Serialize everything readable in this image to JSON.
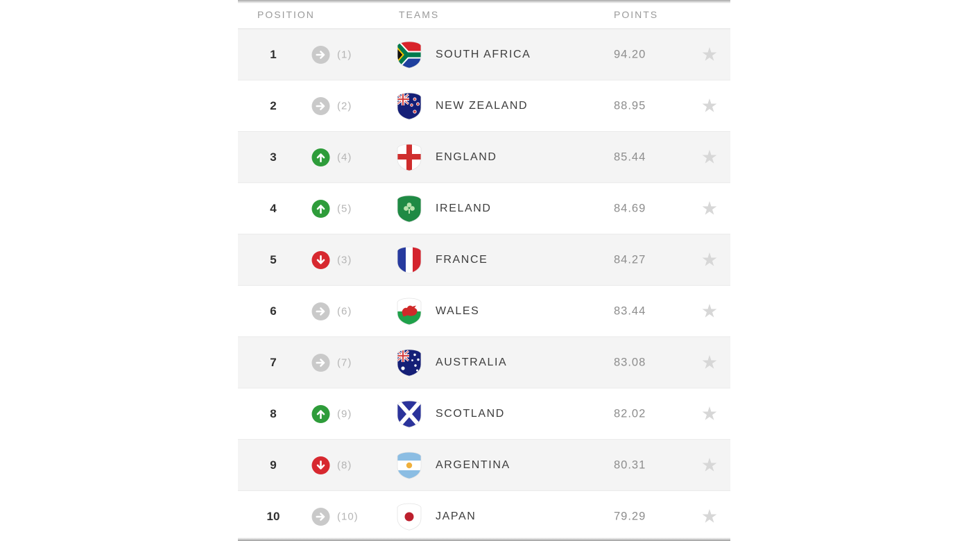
{
  "page": {
    "background": "#ffffff"
  },
  "table": {
    "columns": {
      "position": "POSITION",
      "teams": "TEAMS",
      "points": "POINTS"
    },
    "colors": {
      "rank_up": "#2e9c3a",
      "rank_down": "#d7282f",
      "rank_same": "#c9c9c9",
      "row_alt_background": "#f4f4f4",
      "star": "#d7d7d7",
      "header_text": "#9a9a9a",
      "team_text": "#3d3d3d",
      "points_text": "#8d8d8d"
    },
    "icons": {
      "favorite": {
        "name": "star-icon",
        "glyph": "★"
      },
      "up": "up-arrow-icon",
      "down": "down-arrow-icon",
      "same": "right-arrow-icon"
    },
    "rows": [
      {
        "position": "1",
        "change": "same",
        "previous": "(1)",
        "team": "SOUTH AFRICA",
        "flag": "south-africa",
        "points": "94.20"
      },
      {
        "position": "2",
        "change": "same",
        "previous": "(2)",
        "team": "NEW ZEALAND",
        "flag": "new-zealand",
        "points": "88.95"
      },
      {
        "position": "3",
        "change": "up",
        "previous": "(4)",
        "team": "ENGLAND",
        "flag": "england",
        "points": "85.44"
      },
      {
        "position": "4",
        "change": "up",
        "previous": "(5)",
        "team": "IRELAND",
        "flag": "ireland",
        "points": "84.69"
      },
      {
        "position": "5",
        "change": "down",
        "previous": "(3)",
        "team": "FRANCE",
        "flag": "france",
        "points": "84.27"
      },
      {
        "position": "6",
        "change": "same",
        "previous": "(6)",
        "team": "WALES",
        "flag": "wales",
        "points": "83.44"
      },
      {
        "position": "7",
        "change": "same",
        "previous": "(7)",
        "team": "AUSTRALIA",
        "flag": "australia",
        "points": "83.08"
      },
      {
        "position": "8",
        "change": "up",
        "previous": "(9)",
        "team": "SCOTLAND",
        "flag": "scotland",
        "points": "82.02"
      },
      {
        "position": "9",
        "change": "down",
        "previous": "(8)",
        "team": "ARGENTINA",
        "flag": "argentina",
        "points": "80.31"
      },
      {
        "position": "10",
        "change": "same",
        "previous": "(10)",
        "team": "JAPAN",
        "flag": "japan",
        "points": "79.29"
      }
    ]
  }
}
